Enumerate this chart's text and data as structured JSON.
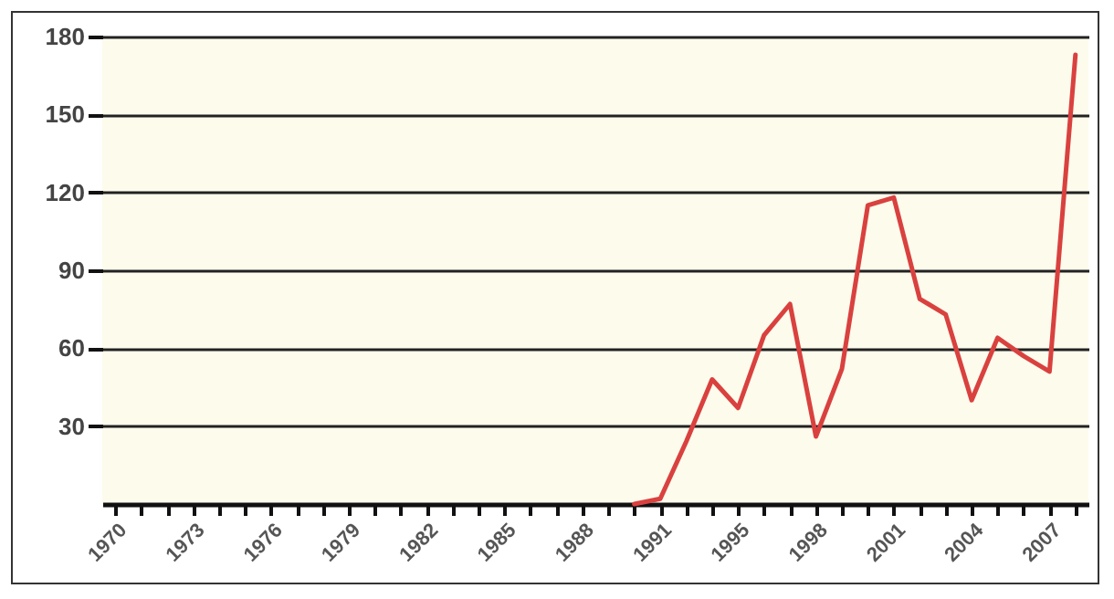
{
  "chart_data": {
    "type": "line",
    "categories": [
      "1970",
      null,
      null,
      "1973",
      null,
      null,
      "1976",
      null,
      null,
      "1979",
      null,
      null,
      "1982",
      null,
      null,
      "1985",
      null,
      null,
      "1988",
      null,
      null,
      "1991",
      null,
      null,
      "1995",
      null,
      null,
      "1998",
      null,
      null,
      "2001",
      null,
      null,
      "2004",
      null,
      null,
      "2007",
      null
    ],
    "series": [
      {
        "color": "#d9413f",
        "values": [
          null,
          null,
          null,
          null,
          null,
          null,
          null,
          null,
          null,
          null,
          null,
          null,
          null,
          null,
          null,
          null,
          null,
          null,
          null,
          null,
          0,
          2,
          24,
          48,
          37,
          65,
          77,
          26,
          52,
          115,
          118,
          79,
          73,
          40,
          64,
          57,
          51,
          173
        ]
      }
    ],
    "ylim": [
      0,
      180
    ],
    "yticks": [
      30,
      60,
      90,
      120,
      150,
      180
    ],
    "grid": "y"
  }
}
